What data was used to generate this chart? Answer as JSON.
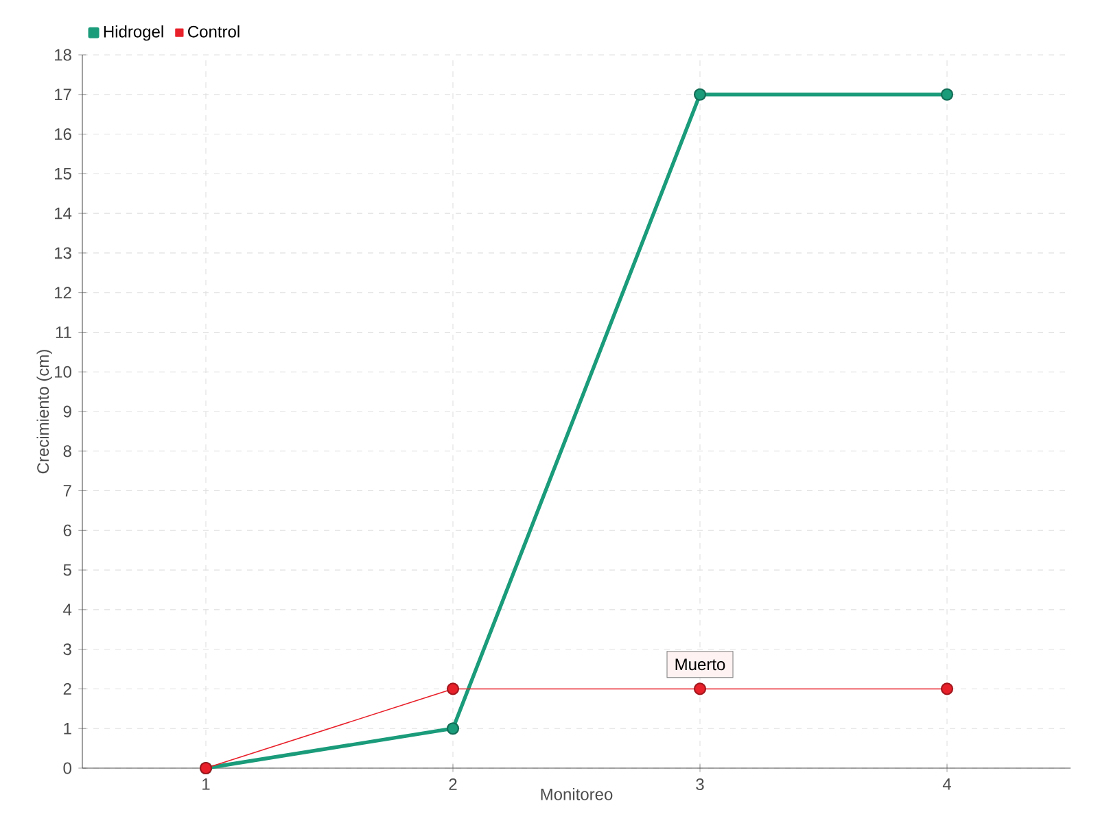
{
  "chart_data": {
    "type": "line",
    "xlabel": "Monitoreo",
    "ylabel": "Crecimiento (cm)",
    "categories": [
      "1",
      "2",
      "3",
      "4"
    ],
    "series": [
      {
        "name": "Hidrogel",
        "color": "#1a9b7a",
        "values": [
          0,
          1,
          17,
          17
        ]
      },
      {
        "name": "Control",
        "color": "#e8202a",
        "values": [
          0,
          2,
          2,
          2
        ]
      }
    ],
    "ylim": [
      0,
      18
    ],
    "yticks": [
      0,
      1,
      2,
      3,
      4,
      5,
      6,
      7,
      8,
      9,
      10,
      11,
      12,
      13,
      14,
      15,
      16,
      17,
      18
    ],
    "grid": true,
    "legend": "top left",
    "marker": "circle",
    "annotations": [
      {
        "text": "Muerto",
        "x": "3",
        "y": 2
      }
    ]
  }
}
